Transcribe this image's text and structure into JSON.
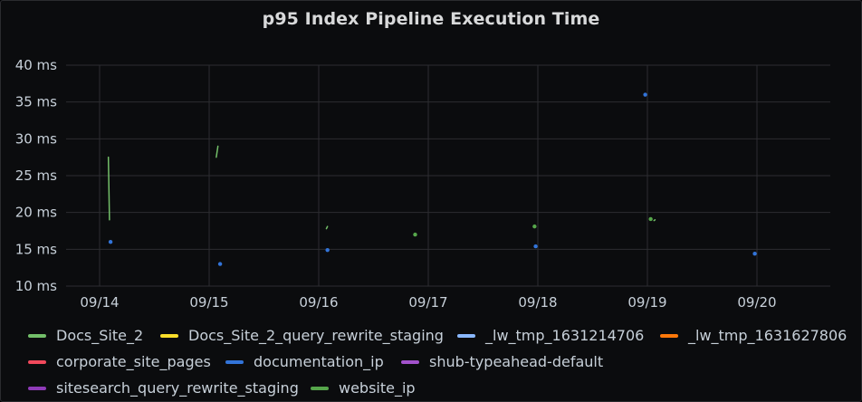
{
  "chart_data": {
    "type": "line",
    "title": "p95 Index Pipeline Execution Time",
    "xlabel": "",
    "ylabel": "",
    "y_ticks": [
      "10 ms",
      "15 ms",
      "20 ms",
      "25 ms",
      "30 ms",
      "35 ms",
      "40 ms"
    ],
    "ylim": [
      10,
      40
    ],
    "x_ticks": [
      "09/14",
      "09/15",
      "09/16",
      "09/17",
      "09/18",
      "09/19",
      "09/20"
    ],
    "grid": true,
    "legend_position": "bottom",
    "series": [
      {
        "name": "Docs_Site_2",
        "color": "#73bf69",
        "points": [
          [
            0.08,
            27.5
          ],
          [
            0.09,
            19
          ]
        ],
        "segments": [
          [
            [
              0.08,
              27.5
            ],
            [
              0.09,
              19
            ]
          ],
          [
            [
              1.065,
              27.5
            ],
            [
              1.08,
              29
            ]
          ],
          [
            [
              2.07,
              17.8
            ],
            [
              2.08,
              18.1
            ]
          ],
          [
            [
              5.06,
              18.9
            ],
            [
              5.07,
              19
            ]
          ]
        ]
      },
      {
        "name": "Docs_Site_2_query_rewrite_staging",
        "color": "#fade2a",
        "points": []
      },
      {
        "name": "_lw_tmp_1631214706",
        "color": "#8ab8ff",
        "points": []
      },
      {
        "name": "_lw_tmp_1631627806",
        "color": "#ff780a",
        "points": []
      },
      {
        "name": "corporate_site_pages",
        "color": "#f2495c",
        "points": []
      },
      {
        "name": "documentation_ip",
        "color": "#3274d9",
        "points": [
          [
            0.1,
            16
          ],
          [
            1.1,
            13
          ],
          [
            2.08,
            14.9
          ],
          [
            3.98,
            15.4
          ],
          [
            4.98,
            36
          ],
          [
            5.98,
            14.4
          ]
        ]
      },
      {
        "name": "shub-typeahead-default",
        "color": "#a352cc",
        "points": []
      },
      {
        "name": "sitesearch_query_rewrite_staging",
        "color": "#8f3bb8",
        "points": []
      },
      {
        "name": "website_ip",
        "color": "#56a64b",
        "points": [
          [
            2.88,
            17
          ],
          [
            3.97,
            18.1
          ],
          [
            5.03,
            19.1
          ]
        ]
      }
    ]
  }
}
